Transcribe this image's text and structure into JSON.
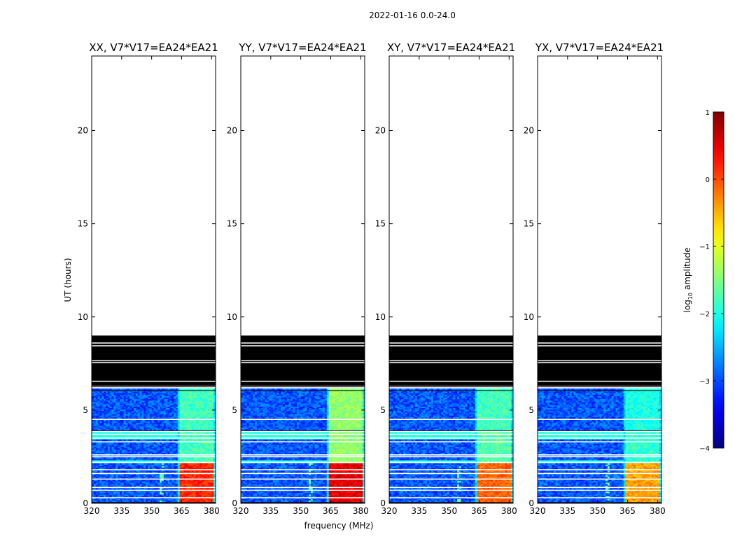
{
  "chart_data": {
    "type": "heatmap",
    "suptitle": "2022-01-16 0.0-24.0",
    "xlabel": "frequency (MHz)",
    "ylabel": "UT (hours)",
    "xlim": [
      320,
      382
    ],
    "ylim": [
      0,
      24
    ],
    "xticks": [
      320,
      335,
      350,
      365,
      380
    ],
    "yticks": [
      0,
      5,
      10,
      15,
      20
    ],
    "panels": [
      {
        "title": "XX, V7*V17=EA24*EA21",
        "band_strength": [
          2.6,
          0.6,
          0.6
        ]
      },
      {
        "title": "YY, V7*V17=EA24*EA21",
        "band_strength": [
          2.9,
          1.0,
          1.0
        ]
      },
      {
        "title": "XY, V7*V17=EA24*EA21",
        "band_strength": [
          2.3,
          0.7,
          0.6
        ]
      },
      {
        "title": "YX, V7*V17=EA24*EA21",
        "band_strength": [
          2.0,
          0.5,
          0.4
        ]
      }
    ],
    "data_coverage_hours": [
      0,
      6.1
    ],
    "flagged_block_hours": [
      6.3,
      9.0
    ],
    "gap_lines_hours": [
      0.3,
      0.7,
      0.85,
      1.3,
      1.6,
      1.8,
      2.2,
      2.5,
      2.6,
      3.3,
      3.5,
      3.7,
      3.85,
      4.5,
      6.2
    ],
    "rfi_band_mhz": [
      363,
      382
    ],
    "rfi_subbands_mhz": [
      [
        363.5,
        367.5
      ],
      [
        368,
        372.5
      ],
      [
        373,
        376.5
      ],
      [
        377,
        380.5
      ]
    ],
    "colorbar": {
      "label_prefix": "log",
      "label_sub": "10",
      "label_suffix": " amplitude",
      "range": [
        -4,
        1
      ],
      "ticks": [
        1,
        0,
        -1,
        -2,
        -3,
        -4
      ],
      "tick_labels": [
        "1",
        "0",
        "−1",
        "−2",
        "−3",
        "−4"
      ],
      "cmap": "jet"
    }
  }
}
